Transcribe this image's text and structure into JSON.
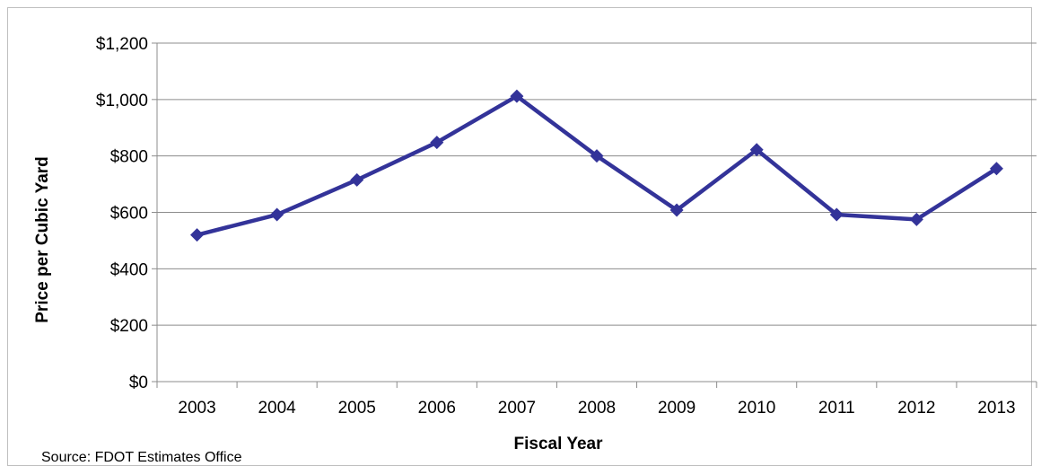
{
  "chart_data": {
    "type": "line",
    "title": "",
    "xlabel": "Fiscal Year",
    "ylabel": "Price per Cubic Yard",
    "categories": [
      "2003",
      "2004",
      "2005",
      "2006",
      "2007",
      "2008",
      "2009",
      "2010",
      "2011",
      "2012",
      "2013"
    ],
    "series": [
      {
        "values": [
          520,
          592,
          715,
          848,
          1012,
          800,
          608,
          822,
          592,
          575,
          755
        ],
        "color": "#333399",
        "marker": "diamond"
      }
    ],
    "ylim": [
      0,
      1200
    ],
    "yticks": [
      0,
      200,
      400,
      600,
      800,
      1000,
      1200
    ],
    "ytick_labels": [
      "$0",
      "$200",
      "$400",
      "$600",
      "$800",
      "$1,000",
      "$1,200"
    ],
    "grid": true,
    "legend": "none",
    "source": "Source:  FDOT Estimates Office"
  }
}
